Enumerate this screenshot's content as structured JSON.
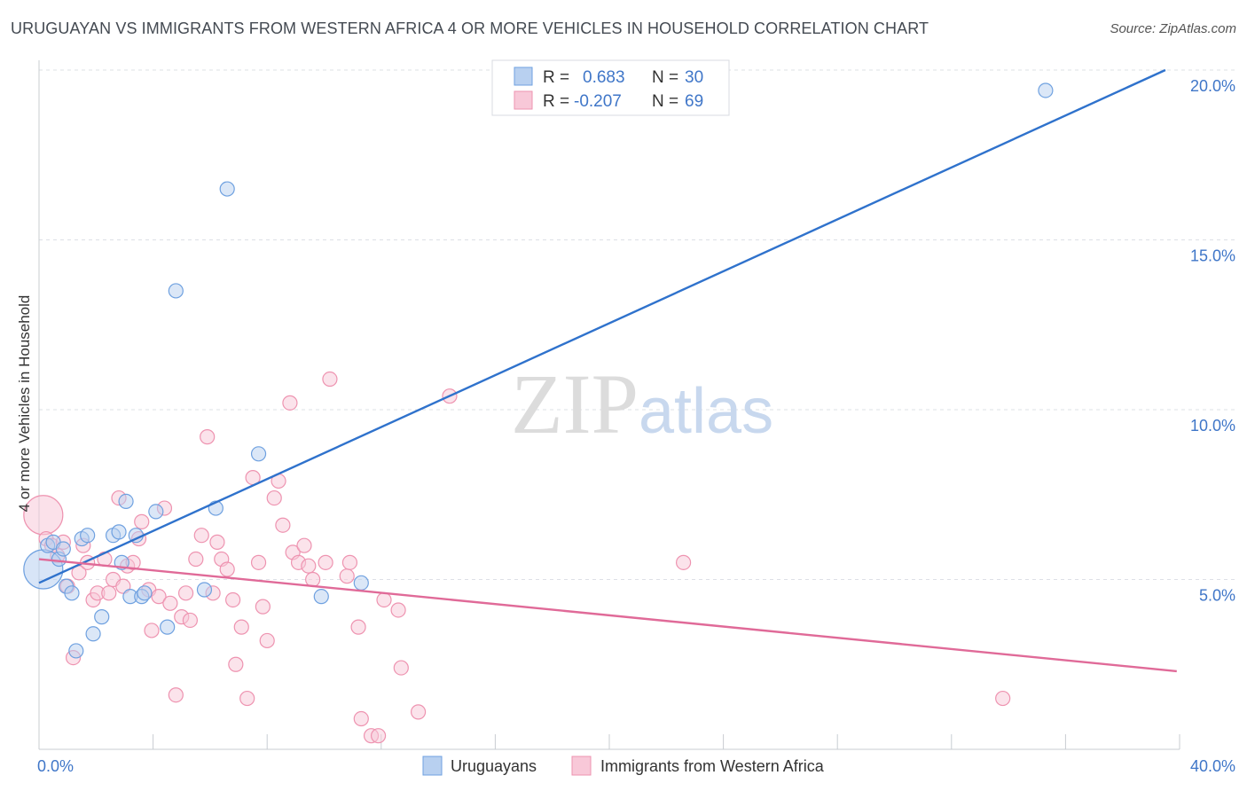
{
  "title": "URUGUAYAN VS IMMIGRANTS FROM WESTERN AFRICA 4 OR MORE VEHICLES IN HOUSEHOLD CORRELATION CHART",
  "source": "Source: ZipAtlas.com",
  "watermark": {
    "zip": "ZIP",
    "atlas": "atlas"
  },
  "colors": {
    "blue": "#6fa1e0",
    "blue_fill": "#b8d0f0",
    "blue_line": "#2f72cc",
    "pink": "#ee93b0",
    "pink_fill": "#f8c8d8",
    "pink_line": "#e06a98",
    "grid": "#dde0e6",
    "tick_label": "#3f76c8",
    "text": "#333333"
  },
  "legend_stats": [
    {
      "r_label": "R =",
      "r_value": "0.683",
      "n_label": "N =",
      "n_value": "30"
    },
    {
      "r_label": "R =",
      "r_value": "-0.207",
      "n_label": "N =",
      "n_value": "69"
    }
  ],
  "chart_data": {
    "type": "scatter",
    "title": "URUGUAYAN VS IMMIGRANTS FROM WESTERN AFRICA 4 OR MORE VEHICLES IN HOUSEHOLD CORRELATION CHART",
    "xlabel": "",
    "ylabel": "4 or more Vehicles in Household",
    "xlim": [
      0,
      40
    ],
    "ylim": [
      0,
      20
    ],
    "x_tick_labels": [
      "0.0%",
      "40.0%"
    ],
    "y_ticks": [
      5,
      10,
      15,
      20
    ],
    "y_tick_labels": [
      "5.0%",
      "10.0%",
      "15.0%",
      "20.0%"
    ],
    "legend": [
      "Uruguayans",
      "Immigrants from Western Africa"
    ],
    "series": [
      {
        "name": "Uruguayans",
        "color": "#6fa1e0",
        "trend": {
          "x": [
            0,
            39.5
          ],
          "y": [
            4.9,
            20.0
          ]
        },
        "points": [
          {
            "x": 0.15,
            "y": 5.3,
            "big": true
          },
          {
            "x": 0.3,
            "y": 6.0
          },
          {
            "x": 0.5,
            "y": 6.1
          },
          {
            "x": 0.7,
            "y": 5.6
          },
          {
            "x": 0.85,
            "y": 5.9
          },
          {
            "x": 0.95,
            "y": 4.8
          },
          {
            "x": 1.15,
            "y": 4.6
          },
          {
            "x": 1.3,
            "y": 2.9
          },
          {
            "x": 1.5,
            "y": 6.2
          },
          {
            "x": 1.7,
            "y": 6.3
          },
          {
            "x": 1.9,
            "y": 3.4
          },
          {
            "x": 2.2,
            "y": 3.9
          },
          {
            "x": 2.6,
            "y": 6.3
          },
          {
            "x": 2.8,
            "y": 6.4
          },
          {
            "x": 2.9,
            "y": 5.5
          },
          {
            "x": 3.05,
            "y": 7.3
          },
          {
            "x": 3.2,
            "y": 4.5
          },
          {
            "x": 3.4,
            "y": 6.3
          },
          {
            "x": 3.6,
            "y": 4.5
          },
          {
            "x": 4.1,
            "y": 7.0
          },
          {
            "x": 4.5,
            "y": 3.6
          },
          {
            "x": 4.8,
            "y": 13.5
          },
          {
            "x": 5.8,
            "y": 4.7
          },
          {
            "x": 6.2,
            "y": 7.1
          },
          {
            "x": 6.6,
            "y": 16.5
          },
          {
            "x": 7.7,
            "y": 8.7
          },
          {
            "x": 9.9,
            "y": 4.5
          },
          {
            "x": 11.3,
            "y": 4.9
          },
          {
            "x": 35.3,
            "y": 19.4
          },
          {
            "x": 3.7,
            "y": 4.6
          }
        ]
      },
      {
        "name": "Immigrants from Western Africa",
        "color": "#ee93b0",
        "trend": {
          "x": [
            0,
            39.9
          ],
          "y": [
            5.6,
            2.3
          ]
        },
        "points": [
          {
            "x": 0.15,
            "y": 6.9,
            "big": true
          },
          {
            "x": 0.25,
            "y": 6.2
          },
          {
            "x": 0.45,
            "y": 6.0
          },
          {
            "x": 0.65,
            "y": 5.7
          },
          {
            "x": 0.85,
            "y": 6.1
          },
          {
            "x": 1.0,
            "y": 4.8
          },
          {
            "x": 1.2,
            "y": 2.7
          },
          {
            "x": 1.4,
            "y": 5.2
          },
          {
            "x": 1.55,
            "y": 6.0
          },
          {
            "x": 1.7,
            "y": 5.5
          },
          {
            "x": 1.9,
            "y": 4.4
          },
          {
            "x": 2.05,
            "y": 4.6
          },
          {
            "x": 2.3,
            "y": 5.6
          },
          {
            "x": 2.45,
            "y": 4.6
          },
          {
            "x": 2.6,
            "y": 5.0
          },
          {
            "x": 2.8,
            "y": 7.4
          },
          {
            "x": 2.95,
            "y": 4.8
          },
          {
            "x": 3.1,
            "y": 5.4
          },
          {
            "x": 3.3,
            "y": 5.5
          },
          {
            "x": 3.5,
            "y": 6.2
          },
          {
            "x": 3.6,
            "y": 6.7
          },
          {
            "x": 3.85,
            "y": 4.7
          },
          {
            "x": 3.95,
            "y": 3.5
          },
          {
            "x": 4.2,
            "y": 4.5
          },
          {
            "x": 4.4,
            "y": 7.1
          },
          {
            "x": 4.6,
            "y": 4.3
          },
          {
            "x": 4.8,
            "y": 1.6
          },
          {
            "x": 5.0,
            "y": 3.9
          },
          {
            "x": 5.15,
            "y": 4.6
          },
          {
            "x": 5.3,
            "y": 3.8
          },
          {
            "x": 5.5,
            "y": 5.6
          },
          {
            "x": 5.7,
            "y": 6.3
          },
          {
            "x": 5.9,
            "y": 9.2
          },
          {
            "x": 6.1,
            "y": 4.6
          },
          {
            "x": 6.25,
            "y": 6.1
          },
          {
            "x": 6.4,
            "y": 5.6
          },
          {
            "x": 6.6,
            "y": 5.3
          },
          {
            "x": 6.8,
            "y": 4.4
          },
          {
            "x": 6.9,
            "y": 2.5
          },
          {
            "x": 7.1,
            "y": 3.6
          },
          {
            "x": 7.3,
            "y": 1.5
          },
          {
            "x": 7.5,
            "y": 8.0
          },
          {
            "x": 7.7,
            "y": 5.5
          },
          {
            "x": 7.85,
            "y": 4.2
          },
          {
            "x": 8.0,
            "y": 3.2
          },
          {
            "x": 8.25,
            "y": 7.4
          },
          {
            "x": 8.4,
            "y": 7.9
          },
          {
            "x": 8.55,
            "y": 6.6
          },
          {
            "x": 8.8,
            "y": 10.2
          },
          {
            "x": 8.9,
            "y": 5.8
          },
          {
            "x": 9.1,
            "y": 5.5
          },
          {
            "x": 9.3,
            "y": 6.0
          },
          {
            "x": 9.45,
            "y": 5.4
          },
          {
            "x": 9.6,
            "y": 5.0
          },
          {
            "x": 10.05,
            "y": 5.5
          },
          {
            "x": 10.2,
            "y": 10.9
          },
          {
            "x": 10.8,
            "y": 5.1
          },
          {
            "x": 10.9,
            "y": 5.5
          },
          {
            "x": 11.2,
            "y": 3.6
          },
          {
            "x": 11.3,
            "y": 0.9
          },
          {
            "x": 11.65,
            "y": 0.4
          },
          {
            "x": 11.9,
            "y": 0.4
          },
          {
            "x": 12.1,
            "y": 4.4
          },
          {
            "x": 12.6,
            "y": 4.1
          },
          {
            "x": 12.7,
            "y": 2.4
          },
          {
            "x": 13.3,
            "y": 1.1
          },
          {
            "x": 14.4,
            "y": 10.4
          },
          {
            "x": 22.6,
            "y": 5.5
          },
          {
            "x": 33.8,
            "y": 1.5
          }
        ]
      }
    ]
  }
}
